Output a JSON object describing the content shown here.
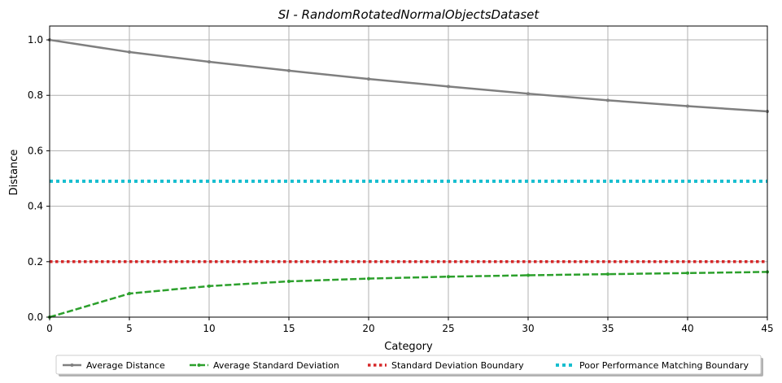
{
  "chart_data": {
    "type": "line",
    "title": "SI - RandomRotatedNormalObjectsDataset",
    "xlabel": "Category",
    "ylabel": "Distance",
    "xlim": [
      0,
      45
    ],
    "ylim": [
      0,
      1.05
    ],
    "xticks": [
      0,
      5,
      10,
      15,
      20,
      25,
      30,
      35,
      40,
      45
    ],
    "yticks": [
      0.0,
      0.2,
      0.4,
      0.6,
      0.8,
      1.0
    ],
    "xtick_labels": [
      "0",
      "5",
      "10",
      "15",
      "20",
      "25",
      "30",
      "35",
      "40",
      "45"
    ],
    "ytick_labels": [
      "0.0",
      "0.2",
      "0.4",
      "0.6",
      "0.8",
      "1.0"
    ],
    "grid": true,
    "legend_position": "below",
    "series": [
      {
        "name": "Average Distance",
        "color": "#7f7f7f",
        "style": "solid",
        "marker": "dot",
        "x": [
          0,
          5,
          10,
          15,
          20,
          25,
          30,
          35,
          40,
          45
        ],
        "y": [
          1.0,
          0.956,
          0.921,
          0.889,
          0.859,
          0.832,
          0.806,
          0.782,
          0.761,
          0.742
        ]
      },
      {
        "name": "Average Standard Deviation",
        "color": "#2ca02c",
        "style": "dashed",
        "marker": "dot",
        "x": [
          0,
          5,
          10,
          15,
          20,
          25,
          30,
          35,
          40,
          45
        ],
        "y": [
          0.0,
          0.085,
          0.112,
          0.129,
          0.139,
          0.146,
          0.151,
          0.155,
          0.159,
          0.163
        ]
      },
      {
        "name": "Standard Deviation Boundary",
        "color": "#d62728",
        "style": "dotted",
        "marker": "none",
        "x": [
          0,
          45
        ],
        "y": [
          0.2,
          0.2
        ]
      },
      {
        "name": "Poor Performance Matching Boundary",
        "color": "#17becf",
        "style": "dotted",
        "marker": "none",
        "x": [
          0,
          45
        ],
        "y": [
          0.49,
          0.49
        ]
      }
    ]
  }
}
